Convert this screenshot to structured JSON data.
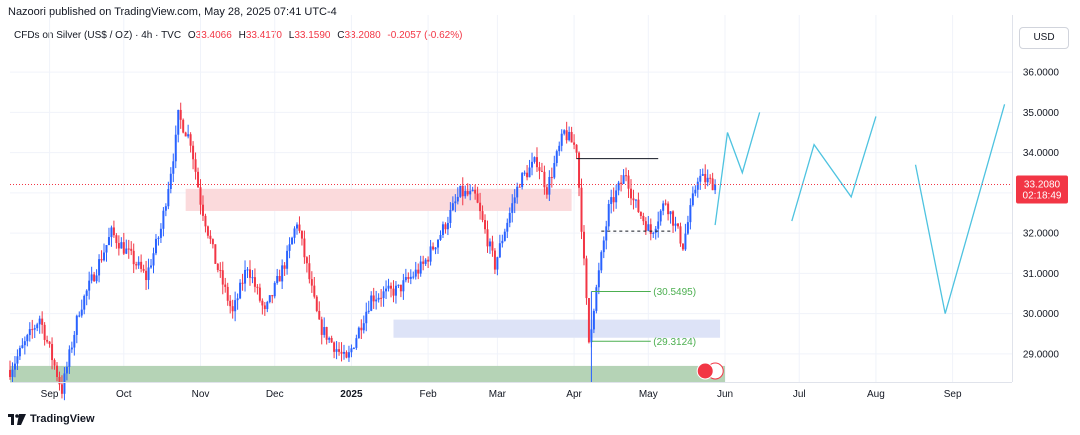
{
  "publisher": "Nazoori published on TradingView.com, May 28, 2025 07:41 UTC-4",
  "symbol": {
    "name": "CFDs on Silver (US$ / OZ) · 4h · TVC",
    "o_label": "O",
    "o": "33.4066",
    "h_label": "H",
    "h": "33.4170",
    "l_label": "L",
    "l": "33.1590",
    "c_label": "C",
    "c": "33.2080",
    "change": "-0.2057 (-0.62%)"
  },
  "currency_button": "USD",
  "footer_brand": "TradingView",
  "colors": {
    "up": "#2962ff",
    "down": "#f23645",
    "projection": "#4ec3e0",
    "price_line": "#f23645",
    "demand_zone": "#dde3f7",
    "supply_zone": "#fbdadc",
    "support_zone": "#b5d3b6",
    "level_line": "#4caf50"
  },
  "chart_data": {
    "type": "candlestick",
    "y_axis": {
      "range": [
        28.3,
        36.55
      ],
      "ticks": [
        "36.0000",
        "35.0000",
        "34.0000",
        "33.0000",
        "32.0000",
        "31.0000",
        "30.0000",
        "29.0000"
      ],
      "side": "right"
    },
    "x_axis": {
      "range": [
        "2024-08-16",
        "2025-09-25"
      ],
      "ticks": [
        {
          "label": "Sep",
          "date": "2024-09-01"
        },
        {
          "label": "Oct",
          "date": "2024-10-01"
        },
        {
          "label": "Nov",
          "date": "2024-11-01"
        },
        {
          "label": "Dec",
          "date": "2024-12-01"
        },
        {
          "label": "2025",
          "date": "2025-01-01"
        },
        {
          "label": "Feb",
          "date": "2025-02-01"
        },
        {
          "label": "Mar",
          "date": "2025-03-01"
        },
        {
          "label": "Apr",
          "date": "2025-04-01"
        },
        {
          "label": "May",
          "date": "2025-05-01"
        },
        {
          "label": "Jun",
          "date": "2025-06-01"
        },
        {
          "label": "Jul",
          "date": "2025-07-01"
        },
        {
          "label": "Aug",
          "date": "2025-08-01"
        },
        {
          "label": "Sep",
          "date": "2025-09-01"
        }
      ]
    },
    "price_path": [
      [
        "2024-08-16",
        28.6
      ],
      [
        "2024-08-28",
        29.9
      ],
      [
        "2024-09-06",
        28.1
      ],
      [
        "2024-09-13",
        30.1
      ],
      [
        "2024-09-26",
        32.0
      ],
      [
        "2024-10-04",
        31.4
      ],
      [
        "2024-10-10",
        30.9
      ],
      [
        "2024-10-16",
        32.1
      ],
      [
        "2024-10-22",
        34.3
      ],
      [
        "2024-10-23",
        34.9
      ],
      [
        "2024-10-28",
        34.3
      ],
      [
        "2024-11-01",
        32.8
      ],
      [
        "2024-11-07",
        31.3
      ],
      [
        "2024-11-14",
        30.0
      ],
      [
        "2024-11-20",
        31.2
      ],
      [
        "2024-11-27",
        30.0
      ],
      [
        "2024-12-06",
        31.4
      ],
      [
        "2024-12-10",
        32.3
      ],
      [
        "2024-12-19",
        29.7
      ],
      [
        "2024-12-30",
        28.8
      ],
      [
        "2025-01-09",
        30.4
      ],
      [
        "2025-01-20",
        30.6
      ],
      [
        "2025-01-30",
        31.2
      ],
      [
        "2025-02-07",
        32.1
      ],
      [
        "2025-02-14",
        33.0
      ],
      [
        "2025-02-20",
        32.9
      ],
      [
        "2025-02-28",
        31.2
      ],
      [
        "2025-03-04",
        32.1
      ],
      [
        "2025-03-10",
        33.3
      ],
      [
        "2025-03-17",
        33.8
      ],
      [
        "2025-03-21",
        33.1
      ],
      [
        "2025-03-28",
        34.5
      ],
      [
        "2025-04-02",
        34.1
      ],
      [
        "2025-04-04",
        32.2
      ],
      [
        "2025-04-07",
        29.3
      ],
      [
        "2025-04-09",
        30.2
      ],
      [
        "2025-04-15",
        32.6
      ],
      [
        "2025-04-22",
        33.5
      ],
      [
        "2025-04-25",
        32.8
      ],
      [
        "2025-05-02",
        32.0
      ],
      [
        "2025-05-08",
        32.8
      ],
      [
        "2025-05-15",
        31.7
      ],
      [
        "2025-05-21",
        33.4
      ],
      [
        "2025-05-28",
        33.21
      ]
    ],
    "projection": [
      [
        [
          "2025-05-28",
          32.2
        ],
        [
          "2025-06-02",
          34.5
        ],
        [
          "2025-06-08",
          33.5
        ],
        [
          "2025-06-15",
          35.0
        ]
      ],
      [
        [
          "2025-06-28",
          32.3
        ],
        [
          "2025-07-07",
          34.2
        ],
        [
          "2025-07-22",
          32.9
        ],
        [
          "2025-08-01",
          34.9
        ]
      ],
      [
        [
          "2025-08-17",
          33.7
        ],
        [
          "2025-08-29",
          30.0
        ],
        [
          "2025-09-22",
          35.2
        ]
      ]
    ],
    "zones": [
      {
        "kind": "supply",
        "from": "2024-10-26",
        "to": "2025-03-31",
        "low": 32.55,
        "high": 33.1
      },
      {
        "kind": "demand",
        "from": "2025-01-18",
        "to": "2025-05-30",
        "low": 29.4,
        "high": 29.85
      },
      {
        "kind": "support",
        "from": "2024-08-16",
        "to": "2025-06-01",
        "low": 28.3,
        "high": 28.7
      }
    ],
    "segments": [
      {
        "from": "2025-04-02",
        "to": "2025-05-05",
        "price": 33.85,
        "style": "solid",
        "color": "#131722"
      },
      {
        "from": "2025-04-12",
        "to": "2025-05-10",
        "price": 32.05,
        "style": "dashed",
        "color": "#131722"
      },
      {
        "from": "2025-04-08",
        "to": "2025-05-02",
        "price": 30.5495,
        "style": "solid",
        "color": "#4caf50"
      },
      {
        "from": "2025-04-08",
        "to": "2025-05-02",
        "price": 29.3124,
        "style": "solid",
        "color": "#4caf50"
      }
    ],
    "level_labels": [
      {
        "text": "(30.5495)",
        "price": 30.5495,
        "date": "2025-05-03"
      },
      {
        "text": "(29.3124)",
        "price": 29.3124,
        "date": "2025-05-03"
      }
    ],
    "last_price": {
      "value": "33.2080",
      "countdown": "02:18:49",
      "price": 33.208
    }
  }
}
